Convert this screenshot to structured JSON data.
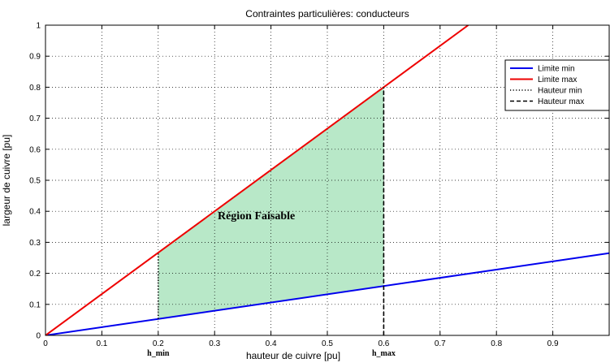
{
  "chart_data": {
    "type": "line",
    "title": "Contraintes particulières: conducteurs",
    "xlabel": "hauteur de cuivre [pu]",
    "ylabel": "largeur de cuivre [pu]",
    "xlim": [
      0,
      1
    ],
    "ylim": [
      0,
      1
    ],
    "xticks": [
      "0",
      "0.1",
      "0.2",
      "0.3",
      "0.4",
      "0.5",
      "0.6",
      "0.7",
      "0.8",
      "0.9"
    ],
    "yticks": [
      "0",
      "0.1",
      "0.2",
      "0.3",
      "0.4",
      "0.5",
      "0.6",
      "0.7",
      "0.8",
      "0.9",
      "1"
    ],
    "grid": true,
    "legend_position": "top-right",
    "series": [
      {
        "name": "Limite min",
        "style": "solid",
        "color": "#0000ee",
        "x": [
          0,
          1
        ],
        "y": [
          0,
          0.265
        ]
      },
      {
        "name": "Limite max",
        "style": "solid",
        "color": "#ee0000",
        "x": [
          0,
          0.75
        ],
        "y": [
          0,
          1
        ]
      },
      {
        "name": "Hauteur min",
        "style": "dotted",
        "color": "#000000",
        "x": [
          0.2,
          0.2
        ],
        "y": [
          0.053,
          0.267
        ]
      },
      {
        "name": "Hauteur max",
        "style": "dashed",
        "color": "#000000",
        "x": [
          0.6,
          0.6
        ],
        "y": [
          0,
          0.8
        ]
      }
    ],
    "region": {
      "label": "Région Faisable",
      "color": "#b8e8c8",
      "polygon": [
        [
          0.2,
          0.053
        ],
        [
          0.6,
          0.159
        ],
        [
          0.6,
          0.8
        ],
        [
          0.2,
          0.267
        ]
      ]
    },
    "markers": [
      {
        "label": "h_min",
        "x": 0.2
      },
      {
        "label": "h_max",
        "x": 0.6
      }
    ]
  }
}
